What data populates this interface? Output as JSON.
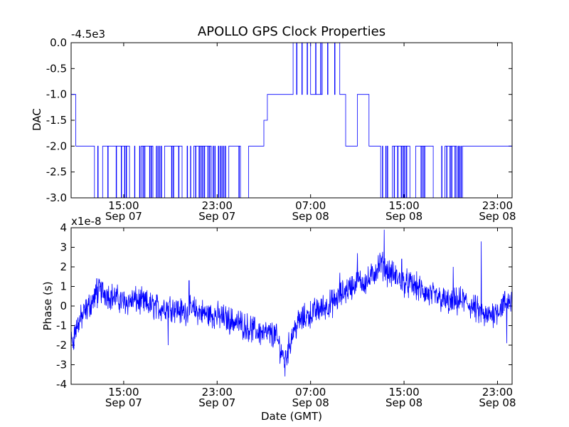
{
  "chart_data": [
    {
      "type": "line",
      "title": "APOLLO GPS Clock Properties",
      "xlabel": "",
      "ylabel": "DAC",
      "y_offset_label": "-4.5e3",
      "ylim": [
        -3.0,
        0.0
      ],
      "yticks": [
        "0.0",
        "-0.5",
        "-1.0",
        "-1.5",
        "-2.0",
        "-2.5",
        "-3.0"
      ],
      "ytick_values": [
        0.0,
        -0.5,
        -1.0,
        -1.5,
        -2.0,
        -2.5,
        -3.0
      ],
      "xlim": [
        "Sep 07 10:30",
        "Sep 09 00:15"
      ],
      "xticks": [
        {
          "time": "15:00",
          "date": "Sep 07"
        },
        {
          "time": "23:00",
          "date": "Sep 07"
        },
        {
          "time": "07:00",
          "date": "Sep 08"
        },
        {
          "time": "15:00",
          "date": "Sep 08"
        },
        {
          "time": "23:00",
          "date": "Sep 08"
        }
      ],
      "series_color": "#0000ff",
      "description_of_levels": "Steps between -3, -2, -1, 0 (×1 + offset -4500); mostly -2 during Sep 07 afternoon, -1 and 0 around Sep 08 05:00–09:00, -2 then flat after Sep 08 19:00",
      "series": [
        {
          "values_by_hour": [
            {
              "t": 10.5,
              "v": -1.0
            },
            {
              "t": 10.9,
              "v": -2.0
            },
            {
              "t": 12.0,
              "v": -2.0
            },
            {
              "t": 12.5,
              "v": -3.0
            },
            {
              "t": 13.2,
              "v": -2.0
            },
            {
              "t": 14.5,
              "v": -2.0
            },
            {
              "t": 15.5,
              "v": -3.0
            },
            {
              "t": 16.5,
              "v": -2.0
            },
            {
              "t": 17.5,
              "v": -3.0
            },
            {
              "t": 18.5,
              "v": -2.0
            },
            {
              "t": 20.0,
              "v": -3.0
            },
            {
              "t": 21.0,
              "v": -2.0
            },
            {
              "t": 22.5,
              "v": -3.0
            },
            {
              "t": 24.0,
              "v": -2.0
            },
            {
              "t": 25.0,
              "v": -3.0
            },
            {
              "t": 25.7,
              "v": -2.0
            },
            {
              "t": 26.5,
              "v": -2.0
            },
            {
              "t": 27.0,
              "v": -1.5
            },
            {
              "t": 27.3,
              "v": -1.0
            },
            {
              "t": 29.0,
              "v": -1.0
            },
            {
              "t": 29.5,
              "v": 0.0
            },
            {
              "t": 31.0,
              "v": -1.0
            },
            {
              "t": 32.0,
              "v": 0.0
            },
            {
              "t": 33.5,
              "v": -1.0
            },
            {
              "t": 34.0,
              "v": -2.0
            },
            {
              "t": 35.0,
              "v": -1.0
            },
            {
              "t": 36.0,
              "v": -2.0
            },
            {
              "t": 37.0,
              "v": -3.0
            },
            {
              "t": 38.0,
              "v": -2.0
            },
            {
              "t": 39.5,
              "v": -3.0
            },
            {
              "t": 40.0,
              "v": -2.0
            },
            {
              "t": 41.5,
              "v": -3.0
            },
            {
              "t": 42.5,
              "v": -2.0
            },
            {
              "t": 43.5,
              "v": -3.0
            },
            {
              "t": 44.0,
              "v": -2.0
            },
            {
              "t": 48.25,
              "v": -2.0
            }
          ]
        }
      ]
    },
    {
      "type": "line",
      "title": "",
      "xlabel": "Date (GMT)",
      "ylabel": "Phase (s)",
      "y_offset_label": "x1e-8",
      "ylim": [
        -4,
        4
      ],
      "yticks": [
        "4",
        "3",
        "2",
        "1",
        "0",
        "-1",
        "-2",
        "-3",
        "-4"
      ],
      "ytick_values": [
        4,
        3,
        2,
        1,
        0,
        -1,
        -2,
        -3,
        -4
      ],
      "xlim": [
        "Sep 07 10:30",
        "Sep 09 00:15"
      ],
      "xticks": [
        {
          "time": "15:00",
          "date": "Sep 07"
        },
        {
          "time": "23:00",
          "date": "Sep 07"
        },
        {
          "time": "07:00",
          "date": "Sep 08"
        },
        {
          "time": "15:00",
          "date": "Sep 08"
        },
        {
          "time": "23:00",
          "date": "Sep 08"
        }
      ],
      "series_color": "#0000ff",
      "series": [
        {
          "trend_by_hour": [
            {
              "t": 10.5,
              "v": -2.0
            },
            {
              "t": 11.0,
              "v": -1.0
            },
            {
              "t": 12.0,
              "v": 0.0
            },
            {
              "t": 13.0,
              "v": 0.8
            },
            {
              "t": 14.0,
              "v": 0.5
            },
            {
              "t": 15.0,
              "v": 0.2
            },
            {
              "t": 16.0,
              "v": 0.3
            },
            {
              "t": 17.0,
              "v": 0.1
            },
            {
              "t": 18.0,
              "v": -0.1
            },
            {
              "t": 19.0,
              "v": 0.0
            },
            {
              "t": 20.0,
              "v": -0.3
            },
            {
              "t": 21.0,
              "v": -0.2
            },
            {
              "t": 22.0,
              "v": -0.4
            },
            {
              "t": 23.0,
              "v": -0.5
            },
            {
              "t": 24.0,
              "v": -0.7
            },
            {
              "t": 25.0,
              "v": -0.9
            },
            {
              "t": 26.0,
              "v": -1.2
            },
            {
              "t": 27.0,
              "v": -1.4
            },
            {
              "t": 28.0,
              "v": -1.5
            },
            {
              "t": 28.8,
              "v": -2.8
            },
            {
              "t": 29.5,
              "v": -1.3
            },
            {
              "t": 30.0,
              "v": -0.8
            },
            {
              "t": 31.0,
              "v": -0.4
            },
            {
              "t": 32.0,
              "v": -0.1
            },
            {
              "t": 33.0,
              "v": 0.2
            },
            {
              "t": 34.0,
              "v": 0.8
            },
            {
              "t": 35.0,
              "v": 1.2
            },
            {
              "t": 36.0,
              "v": 1.3
            },
            {
              "t": 37.0,
              "v": 2.2
            },
            {
              "t": 37.5,
              "v": 1.8
            },
            {
              "t": 38.0,
              "v": 1.6
            },
            {
              "t": 39.0,
              "v": 1.2
            },
            {
              "t": 40.0,
              "v": 1.0
            },
            {
              "t": 41.0,
              "v": 0.6
            },
            {
              "t": 42.0,
              "v": 0.4
            },
            {
              "t": 43.0,
              "v": 0.1
            },
            {
              "t": 44.0,
              "v": 0.3
            },
            {
              "t": 45.0,
              "v": -0.1
            },
            {
              "t": 46.0,
              "v": -0.6
            },
            {
              "t": 47.0,
              "v": -0.2
            },
            {
              "t": 48.0,
              "v": 0.3
            },
            {
              "t": 48.25,
              "v": 0.2
            }
          ],
          "spikes": [
            {
              "t": 12.7,
              "v": 1.4
            },
            {
              "t": 18.8,
              "v": -2.0
            },
            {
              "t": 20.6,
              "v": 1.3
            },
            {
              "t": 28.8,
              "v": -3.6
            },
            {
              "t": 33.5,
              "v": 1.7
            },
            {
              "t": 35.0,
              "v": 2.7
            },
            {
              "t": 37.3,
              "v": 3.9
            },
            {
              "t": 38.8,
              "v": 2.4
            },
            {
              "t": 43.2,
              "v": 2.0
            },
            {
              "t": 45.6,
              "v": 3.3
            },
            {
              "t": 47.8,
              "v": -1.9
            }
          ]
        }
      ]
    }
  ]
}
